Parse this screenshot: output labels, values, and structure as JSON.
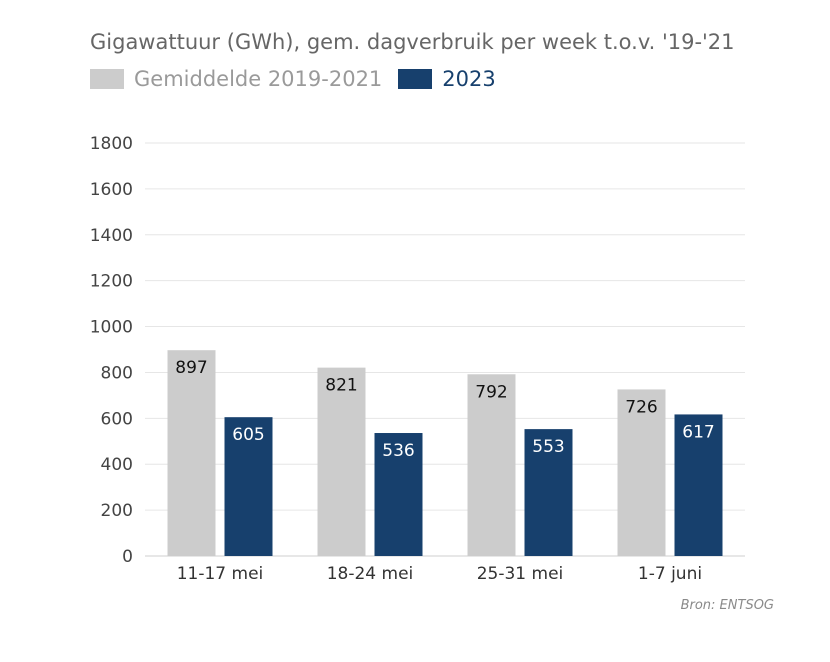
{
  "chart_data": {
    "type": "bar",
    "title": "Gigawattuur (GWh), gem. dagverbruik per week t.o.v. '19-'21",
    "categories": [
      "11-17 mei",
      "18-24 mei",
      "25-31 mei",
      "1-7 juni"
    ],
    "series": [
      {
        "name": "Gemiddelde 2019-2021",
        "values": [
          897,
          821,
          792,
          726
        ],
        "color": "#cccccc",
        "label_color": "#111111"
      },
      {
        "name": "2023",
        "values": [
          605,
          536,
          553,
          617
        ],
        "color": "#17406d",
        "label_color": "#ffffff"
      }
    ],
    "ylim": [
      0,
      1800
    ],
    "yticks": [
      0,
      200,
      400,
      600,
      800,
      1000,
      1200,
      1400,
      1600,
      1800
    ],
    "grid": true,
    "legend": "top-left",
    "source": "Bron: ENTSOG"
  }
}
